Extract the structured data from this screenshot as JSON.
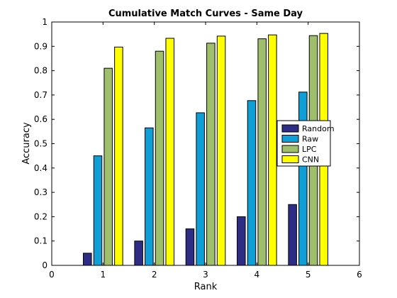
{
  "chart_data": {
    "type": "bar",
    "title": "Cumulative Match Curves - Same Day",
    "xlabel": "Rank",
    "ylabel": "Accuracy",
    "categories": [
      1,
      2,
      3,
      4,
      5
    ],
    "xlim": [
      0,
      6
    ],
    "ylim": [
      0,
      1
    ],
    "xticks": [
      "0",
      "1",
      "2",
      "3",
      "4",
      "5",
      "6"
    ],
    "yticks": [
      "0",
      "0.1",
      "0.2",
      "0.3",
      "0.4",
      "0.5",
      "0.6",
      "0.7",
      "0.8",
      "0.9",
      "1"
    ],
    "grid": false,
    "legend_position": "center-right",
    "series": [
      {
        "name": "Random",
        "color": "#2e2d85",
        "values": [
          0.05,
          0.1,
          0.15,
          0.2,
          0.25
        ]
      },
      {
        "name": "Raw",
        "color": "#0f9fd6",
        "values": [
          0.45,
          0.565,
          0.627,
          0.677,
          0.712
        ]
      },
      {
        "name": "LPC",
        "color": "#9fbf6d",
        "values": [
          0.81,
          0.88,
          0.913,
          0.931,
          0.944
        ]
      },
      {
        "name": "CNN",
        "color": "#ffff00",
        "values": [
          0.897,
          0.933,
          0.942,
          0.947,
          0.953
        ]
      }
    ]
  }
}
